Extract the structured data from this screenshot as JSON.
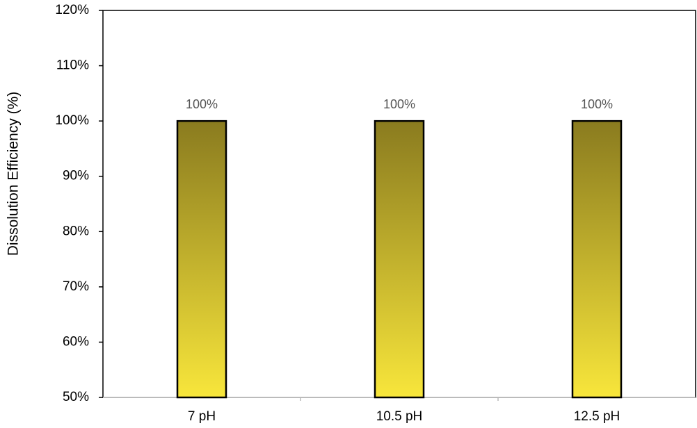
{
  "chart_data": {
    "type": "bar",
    "y_label": "Dissolution Efficiency (%)",
    "categories": [
      "7 pH",
      "10.5 pH",
      "12.5 pH"
    ],
    "values": [
      100,
      100,
      100
    ],
    "value_labels": [
      "100%",
      "100%",
      "100%"
    ],
    "gradient": [
      "#8a7b1f",
      "#f8e63b"
    ],
    "ylim": [
      50,
      120
    ],
    "yticks": [
      {
        "value": 50,
        "label": "50%"
      },
      {
        "value": 60,
        "label": "60%"
      },
      {
        "value": 70,
        "label": "70%"
      },
      {
        "value": 80,
        "label": "80%"
      },
      {
        "value": 90,
        "label": "90%"
      },
      {
        "value": 100,
        "label": "100%"
      },
      {
        "value": 110,
        "label": "110%"
      },
      {
        "value": 120,
        "label": "120%"
      }
    ]
  }
}
